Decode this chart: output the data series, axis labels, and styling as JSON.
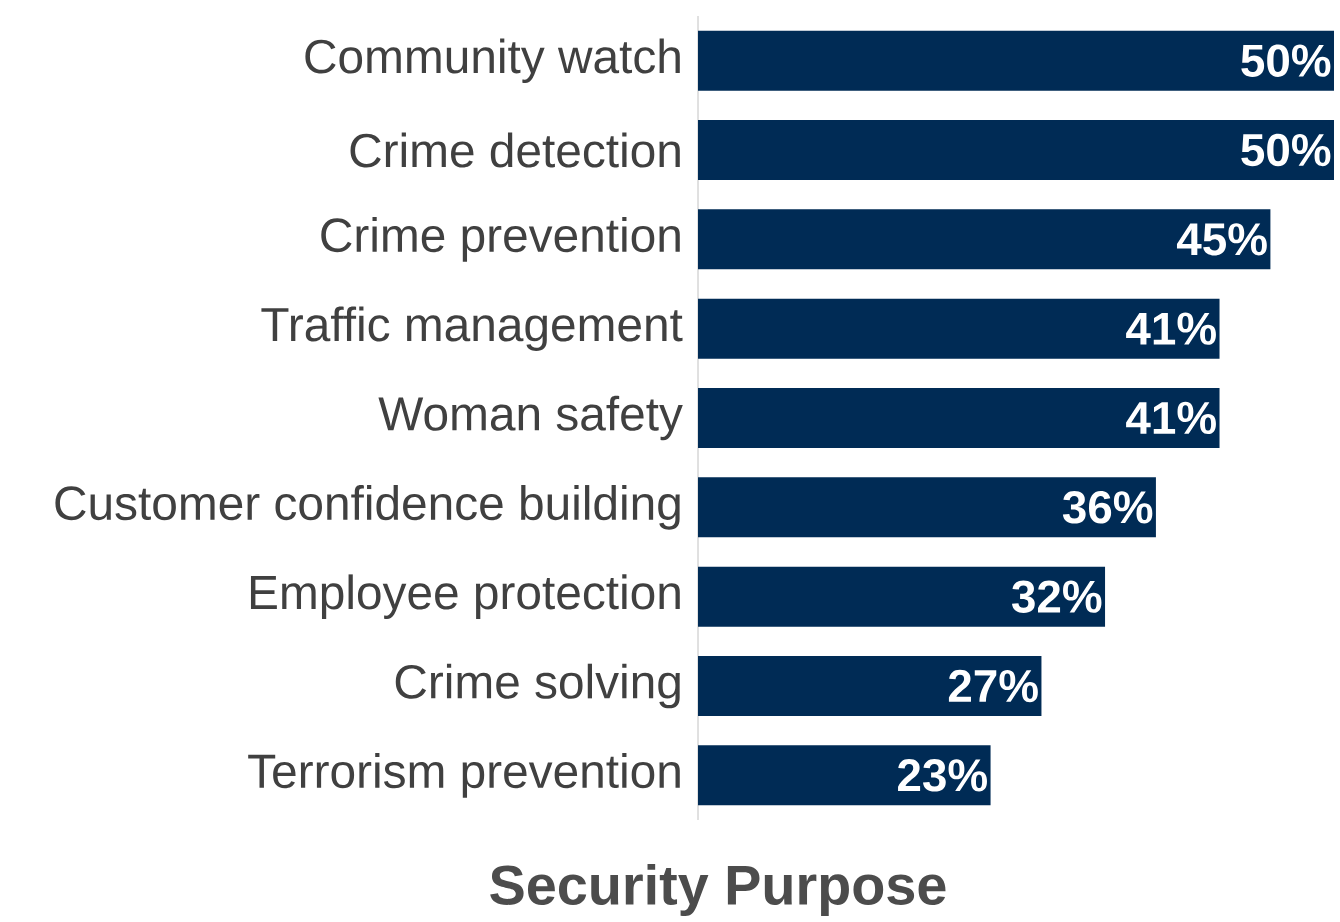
{
  "chart_data": {
    "type": "bar",
    "orientation": "horizontal",
    "xlabel": "Security Purpose",
    "categories": [
      "Community watch",
      "Crime detection",
      "Crime prevention",
      "Traffic management",
      "Woman safety",
      "Customer confidence building",
      "Employee protection",
      "Crime solving",
      "Terrorism prevention"
    ],
    "values": [
      50,
      50,
      45,
      41,
      41,
      36,
      32,
      27,
      23
    ],
    "value_labels": [
      "50%",
      "50%",
      "45%",
      "41%",
      "41%",
      "36%",
      "32%",
      "27%",
      "23%"
    ],
    "color": "#002b55"
  }
}
